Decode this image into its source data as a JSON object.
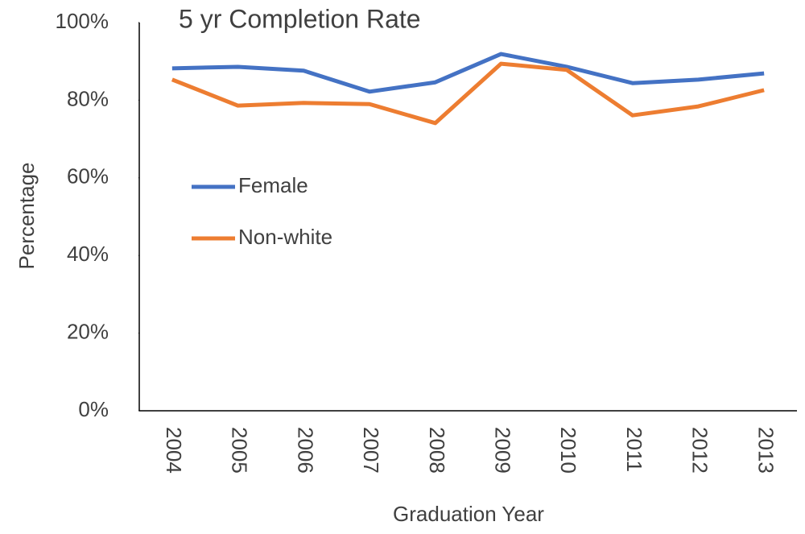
{
  "chart_data": {
    "type": "line",
    "title": "5 yr Completion Rate",
    "x_label": "Graduation Year",
    "y_label": "Percentage",
    "categories": [
      "2004",
      "2005",
      "2006",
      "2007",
      "2008",
      "2009",
      "2010",
      "2011",
      "2012",
      "2013"
    ],
    "series": [
      {
        "name": "Female",
        "color": "#4472c4",
        "values": [
          88.2,
          88.6,
          87.6,
          82.2,
          84.6,
          91.9,
          88.6,
          84.4,
          85.3,
          86.9
        ]
      },
      {
        "name": "Non-white",
        "color": "#ed7d31",
        "values": [
          85.3,
          78.6,
          79.3,
          79.0,
          74.1,
          89.4,
          87.8,
          76.1,
          78.4,
          82.6
        ]
      }
    ],
    "ylim": [
      0,
      100
    ],
    "yticks": [
      {
        "value": 0,
        "label": "0%"
      },
      {
        "value": 20,
        "label": "20%"
      },
      {
        "value": 40,
        "label": "40%"
      },
      {
        "value": 60,
        "label": "60%"
      },
      {
        "value": 80,
        "label": "80%"
      },
      {
        "value": 100,
        "label": "100%"
      }
    ],
    "legend": "left"
  }
}
